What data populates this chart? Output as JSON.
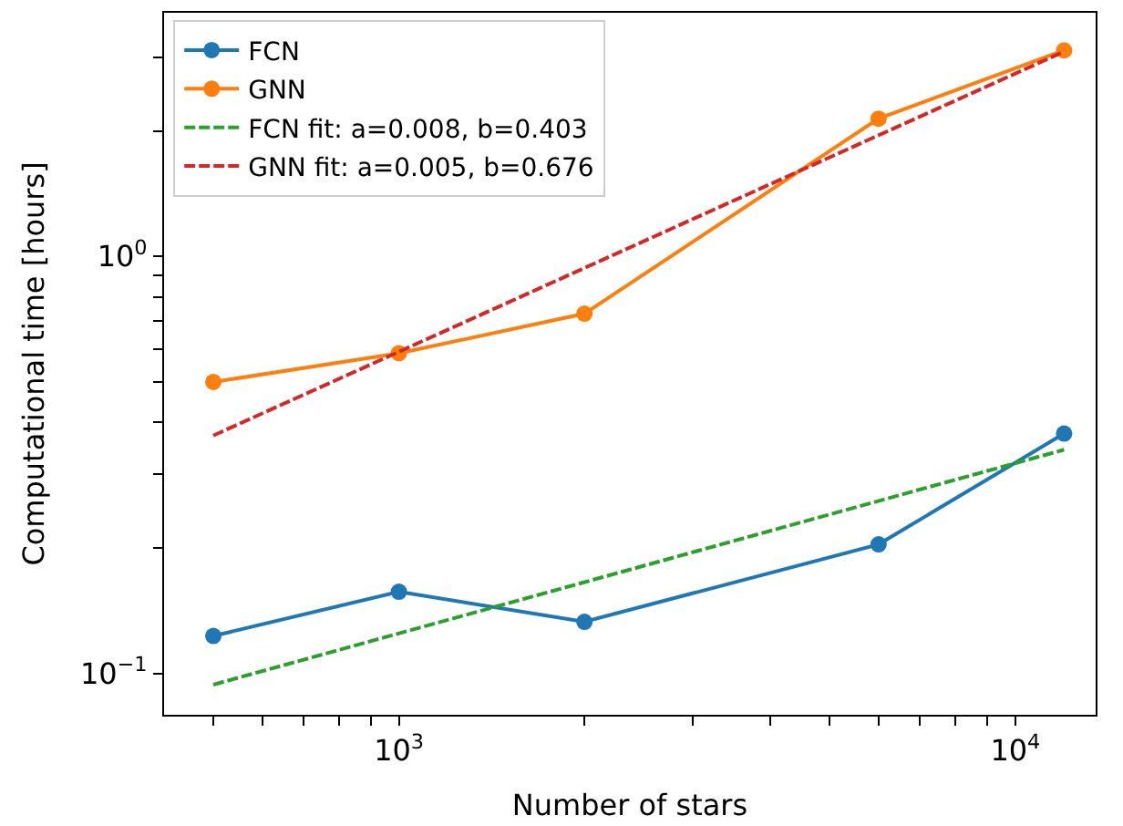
{
  "chart_data": {
    "type": "line",
    "xlabel": "Number of stars",
    "ylabel": "Computational time [hours]",
    "log": "xy",
    "legend": "top left",
    "xlim": [
      416,
      13500
    ],
    "ylim": [
      0.0796,
      3.84
    ],
    "xticks": [
      {
        "value": 500,
        "label": null
      },
      {
        "value": 600,
        "label": null
      },
      {
        "value": 700,
        "label": null
      },
      {
        "value": 800,
        "label": null
      },
      {
        "value": 900,
        "label": null
      },
      {
        "value": 1000,
        "label": "10$^{3}$"
      },
      {
        "value": 2000,
        "label": null
      },
      {
        "value": 3000,
        "label": null
      },
      {
        "value": 4000,
        "label": null
      },
      {
        "value": 5000,
        "label": null
      },
      {
        "value": 6000,
        "label": null
      },
      {
        "value": 7000,
        "label": null
      },
      {
        "value": 8000,
        "label": null
      },
      {
        "value": 9000,
        "label": null
      },
      {
        "value": 10000,
        "label": "10$^{4}$"
      }
    ],
    "yticks": [
      {
        "value": 0.1,
        "label": "10$^{−1}$"
      },
      {
        "value": 0.2,
        "label": null
      },
      {
        "value": 0.3,
        "label": null
      },
      {
        "value": 0.4,
        "label": null
      },
      {
        "value": 0.5,
        "label": null
      },
      {
        "value": 0.6,
        "label": null
      },
      {
        "value": 0.7,
        "label": null
      },
      {
        "value": 0.8,
        "label": null
      },
      {
        "value": 0.9,
        "label": null
      },
      {
        "value": 1,
        "label": "10$^{0}$"
      },
      {
        "value": 2,
        "label": null
      },
      {
        "value": 3,
        "label": null
      }
    ],
    "series": [
      {
        "name": "FCN",
        "color": "#1f77b4",
        "marker": "circle",
        "line_style": "solid",
        "x": [
          500,
          1000,
          2000,
          6000,
          12000
        ],
        "values": [
          0.123,
          0.157,
          0.133,
          0.204,
          0.376
        ]
      },
      {
        "name": "GNN",
        "color": "#ff7f0e",
        "marker": "circle",
        "line_style": "solid",
        "x": [
          500,
          1000,
          2000,
          6000,
          12000
        ],
        "values": [
          0.5,
          0.586,
          0.729,
          2.14,
          3.12
        ]
      },
      {
        "name": "FCN fit: a=0.008, b=0.403",
        "color": "#2ca02c",
        "marker": "none",
        "line_style": "dashed",
        "x": [
          500,
          12000
        ],
        "values": [
          0.094,
          0.344
        ]
      },
      {
        "name": "GNN fit: a=0.005, b=0.676",
        "color": "#d62728",
        "marker": "none",
        "line_style": "dashed",
        "x": [
          500,
          12000
        ],
        "values": [
          0.372,
          3.1
        ]
      }
    ]
  }
}
